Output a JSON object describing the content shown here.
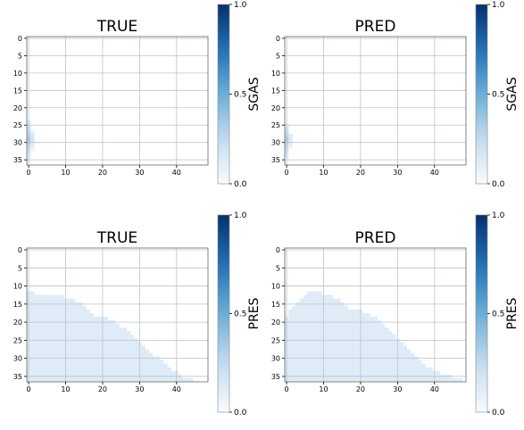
{
  "chart_data": [
    {
      "type": "heatmap",
      "title": "TRUE",
      "colorbar": {
        "label": "SGAS",
        "range": [
          0.0,
          1.0
        ],
        "ticks": [
          "0.0",
          "0.5",
          "1.0"
        ],
        "colormap": "Blues"
      },
      "x_ticks": [
        "0",
        "10",
        "20",
        "30",
        "40"
      ],
      "y_ticks": [
        "0",
        "5",
        "10",
        "15",
        "20",
        "25",
        "30",
        "35"
      ],
      "xlim": [
        -0.5,
        48.5
      ],
      "ylim": [
        36.5,
        -0.5
      ],
      "grid": true,
      "cells": [
        [
          0,
          24,
          0.1
        ],
        [
          0,
          25,
          0.15
        ],
        [
          0,
          26,
          0.2
        ],
        [
          0,
          27,
          0.25
        ],
        [
          0,
          28,
          0.3
        ],
        [
          0,
          29,
          0.35
        ],
        [
          0,
          30,
          0.32
        ],
        [
          0,
          31,
          0.25
        ],
        [
          0,
          32,
          0.2
        ],
        [
          0,
          33,
          0.12
        ],
        [
          0,
          34,
          0.08
        ],
        [
          0,
          35,
          0.05
        ],
        [
          1,
          27,
          0.1
        ],
        [
          1,
          28,
          0.15
        ],
        [
          1,
          29,
          0.18
        ],
        [
          1,
          30,
          0.15
        ],
        [
          1,
          31,
          0.1
        ],
        [
          1,
          32,
          0.06
        ]
      ]
    },
    {
      "type": "heatmap",
      "title": "PRED",
      "colorbar": {
        "label": "SGAS",
        "range": [
          0.0,
          1.0
        ],
        "ticks": [
          "0.0",
          "0.5",
          "1.0"
        ],
        "colormap": "Blues"
      },
      "x_ticks": [
        "0",
        "10",
        "20",
        "30",
        "40"
      ],
      "y_ticks": [
        "0",
        "5",
        "10",
        "15",
        "20",
        "25",
        "30",
        "35"
      ],
      "xlim": [
        -0.5,
        48.5
      ],
      "ylim": [
        36.5,
        -0.5
      ],
      "grid": true,
      "cells": [
        [
          0,
          25,
          0.1
        ],
        [
          0,
          26,
          0.15
        ],
        [
          0,
          27,
          0.22
        ],
        [
          0,
          28,
          0.28
        ],
        [
          0,
          29,
          0.33
        ],
        [
          0,
          30,
          0.3
        ],
        [
          0,
          31,
          0.24
        ],
        [
          0,
          32,
          0.18
        ],
        [
          0,
          33,
          0.1
        ],
        [
          0,
          34,
          0.06
        ],
        [
          1,
          28,
          0.12
        ],
        [
          1,
          29,
          0.15
        ],
        [
          1,
          30,
          0.12
        ],
        [
          1,
          31,
          0.08
        ]
      ]
    },
    {
      "type": "heatmap",
      "title": "TRUE",
      "colorbar": {
        "label": "PRES",
        "range": [
          0.0,
          1.0
        ],
        "ticks": [
          "0.0",
          "0.5",
          "1.0"
        ],
        "colormap": "Blues"
      },
      "x_ticks": [
        "0",
        "10",
        "20",
        "30",
        "40"
      ],
      "y_ticks": [
        "0",
        "5",
        "10",
        "15",
        "20",
        "25",
        "30",
        "35"
      ],
      "xlim": [
        -0.5,
        48.5
      ],
      "ylim": [
        36.5,
        -0.5
      ],
      "grid": true,
      "fill_value": 0.12,
      "extent": {
        "columns": [
          0,
          45
        ],
        "top_row": [
          12,
          12,
          13,
          13,
          13,
          13,
          13,
          13,
          13,
          13,
          14,
          14,
          14,
          15,
          15,
          16,
          17,
          18,
          19,
          19,
          19,
          19,
          20,
          20,
          21,
          22,
          22,
          23,
          24,
          25,
          26,
          27,
          28,
          29,
          30,
          30,
          31,
          32,
          33,
          34,
          34,
          35,
          36,
          36,
          36,
          37
        ]
      }
    },
    {
      "type": "heatmap",
      "title": "PRED",
      "colorbar": {
        "label": "PRES",
        "range": [
          0.0,
          1.0
        ],
        "ticks": [
          "0.0",
          "0.5",
          "1.0"
        ],
        "colormap": "Blues"
      },
      "x_ticks": [
        "0",
        "10",
        "20",
        "30",
        "40"
      ],
      "y_ticks": [
        "0",
        "5",
        "10",
        "15",
        "20",
        "25",
        "30",
        "35"
      ],
      "xlim": [
        -0.5,
        48.5
      ],
      "ylim": [
        36.5,
        -0.5
      ],
      "grid": true,
      "fill_value": 0.12,
      "extent": {
        "columns": [
          0,
          47
        ],
        "top_row": [
          19,
          17,
          16,
          15,
          14,
          13,
          12,
          12,
          12,
          12,
          13,
          13,
          13,
          14,
          14,
          15,
          16,
          17,
          17,
          17,
          17,
          18,
          18,
          19,
          19,
          20,
          21,
          22,
          23,
          24,
          25,
          26,
          27,
          28,
          29,
          30,
          31,
          32,
          33,
          33,
          34,
          34,
          35,
          35,
          35,
          36,
          36,
          36
        ]
      }
    }
  ]
}
